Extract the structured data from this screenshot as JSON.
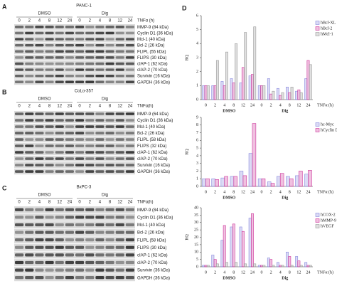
{
  "blots": [
    {
      "letter": "A",
      "cell_line": "PANC-1",
      "groups": [
        "DMSO",
        "Dig"
      ],
      "times": [
        "0",
        "2",
        "4",
        "8",
        "12",
        "24",
        "0",
        "2",
        "4",
        "8",
        "12",
        "24"
      ],
      "time_label": "TNFα (h)",
      "proteins": [
        "MMP-9 (84 kDa)",
        "Cyclin D1 (36 kDa)",
        "Mcl-1 (40 kDa)",
        "Bcl-2 (26 kDa)",
        "FLIPL (55 kDa)",
        "FLIPS (30 kDa)",
        "cIAP-1 (62 kDa)",
        "cIAP-2 (70 kDa)",
        "Survivin (16 kDa)",
        "GAPDH (36 kDa)"
      ]
    },
    {
      "letter": "B",
      "cell_line": "CoLo-357",
      "groups": [
        "DMSO",
        "Dig"
      ],
      "times": [
        "0",
        "2",
        "4",
        "8",
        "12",
        "24",
        "0",
        "2",
        "4",
        "8",
        "12",
        "24"
      ],
      "time_label": "TNFα(h)",
      "proteins": [
        "MMP-9 (64 kDa)",
        "Cyclin D1 (36 kDa)",
        "Mcl-1 (40 kDa)",
        "Bcl-2 (26 kDa)",
        "FLIPL (58 kDa)",
        "FLIPS (32 kDa)",
        "cIAP-1 (62 kDa)",
        "cIAP-2 (70 kDa)",
        "Survivin (16 kDa)",
        "GAPDH (36 kDa)"
      ]
    },
    {
      "letter": "C",
      "cell_line": "BxPC-3",
      "groups": [
        "DMSO",
        "Dig"
      ],
      "times": [
        "0",
        "2",
        "4",
        "8",
        "12",
        "24",
        "0",
        "2",
        "4",
        "8",
        "12",
        "24"
      ],
      "time_label": "TNFα(h)",
      "proteins": [
        "MMP-9 (84 kDa)",
        "Cyclin D1 (36 kDa)",
        "Mcl-1 (40 kDa)",
        "Bcl-2 (26 kDa)",
        "FLIPL (58 kDa)",
        "FLIPS (30 kDa)",
        "cIAP-1 (62 kDa)",
        "cIAP-2 (70 kDa)",
        "Survivin (36 kDa)",
        "GAPDH (36 kDa)"
      ]
    }
  ],
  "panel_d_letter": "D",
  "chart_data": [
    {
      "type": "bar",
      "ylabel": "RQ",
      "xlabel": "TNFα (h)",
      "groups": [
        "DMSO",
        "Dig"
      ],
      "categories": [
        "0",
        "2",
        "4",
        "8",
        "12",
        "24",
        "0",
        "2",
        "4",
        "8",
        "12",
        "24"
      ],
      "ylim": [
        0,
        6
      ],
      "yticks": [
        0,
        1,
        2,
        3,
        4,
        5,
        6
      ],
      "legend": "right",
      "series": [
        {
          "name": "hBcl-XL",
          "color": "#8888dd",
          "values": [
            1,
            1,
            1.3,
            1.5,
            1.2,
            1.7,
            1,
            1.5,
            0.8,
            0.9,
            0.6,
            1.5
          ]
        },
        {
          "name": "hBcl-2",
          "color": "#cc3399",
          "values": [
            1,
            1,
            1,
            1.2,
            2.3,
            1.8,
            1,
            0.4,
            0.3,
            0.5,
            0.7,
            2.8
          ]
        },
        {
          "name": "hMcl-1",
          "color": "#999999",
          "values": [
            1,
            2.8,
            3.4,
            4,
            4.8,
            5.2,
            1,
            0.6,
            0.5,
            0.9,
            0.5,
            2.5
          ]
        }
      ]
    },
    {
      "type": "bar",
      "ylabel": "RQ",
      "xlabel": "TNFα (h)",
      "groups": [
        "DMSO",
        "Dig"
      ],
      "categories": [
        "0",
        "2",
        "4",
        "8",
        "12",
        "24",
        "0",
        "2",
        "4",
        "8",
        "12",
        "24"
      ],
      "ylim": [
        0,
        9
      ],
      "yticks": [
        0,
        1,
        2,
        3,
        4,
        5,
        6,
        7,
        8,
        9
      ],
      "legend": "right",
      "series": [
        {
          "name": "hc-Myc",
          "color": "#8888dd",
          "values": [
            1,
            1,
            1.1,
            1.3,
            2,
            4.3,
            1,
            0.6,
            1.3,
            1.3,
            1.4,
            1.6
          ]
        },
        {
          "name": "hCyclin D1",
          "color": "#cc3399",
          "values": [
            1,
            0.9,
            1.3,
            1.3,
            1.4,
            8.2,
            1,
            0.4,
            1.7,
            1,
            2,
            2.1
          ]
        }
      ]
    },
    {
      "type": "bar",
      "ylabel": "RQ",
      "xlabel": "TNFα (h)",
      "groups": [
        "DMSO",
        "Dig"
      ],
      "categories": [
        "0",
        "2",
        "4",
        "8",
        "12",
        "24",
        "0",
        "2",
        "4",
        "8",
        "12",
        "24"
      ],
      "ylim": [
        0,
        40
      ],
      "yticks": [
        0,
        5,
        10,
        15,
        20,
        25,
        30,
        35,
        40
      ],
      "legend": "right",
      "series": [
        {
          "name": "hCOX-2",
          "color": "#8888dd",
          "values": [
            1,
            8,
            18,
            27,
            27,
            33,
            1,
            6,
            3,
            10,
            7,
            3
          ]
        },
        {
          "name": "hMMP-9",
          "color": "#cc3399",
          "values": [
            1,
            5,
            28,
            29,
            24,
            36,
            1,
            5,
            1,
            7,
            4,
            1
          ]
        },
        {
          "name": "hVEGF",
          "color": "#999999",
          "values": [
            1,
            2,
            3,
            3,
            2,
            2,
            1,
            1,
            1,
            1,
            1,
            1
          ]
        }
      ]
    }
  ]
}
